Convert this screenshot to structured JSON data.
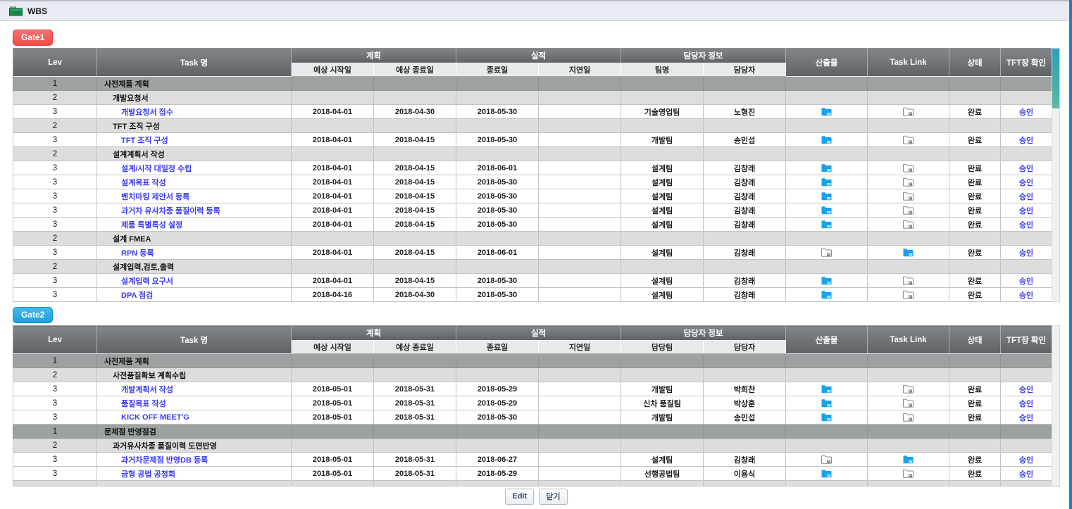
{
  "window": {
    "title": "WBS",
    "icon": "green-folder-icon"
  },
  "colors": {
    "gate1_badge": "#ee4a48",
    "gate2_badge": "#1ba0dc",
    "link_blue": "#3c3cf0",
    "folder_blue": "#18a3ea",
    "folder_gray": "#8b8b8b",
    "scroll_thumb_teal": "#45adab",
    "edge_blue": "#1e7cc9",
    "titlebar_icon_green": "#15894b"
  },
  "buttons": {
    "edit": "Edit",
    "close": "닫기"
  },
  "tables": [
    {
      "gate_label": "Gate1",
      "columns": {
        "lev": "Lev",
        "task": "Task 명",
        "plan_group": "계획",
        "plan_start": "예상 시작일",
        "plan_end": "예상 종료일",
        "actual_group": "실적",
        "actual_end": "종료일",
        "delay": "지연일",
        "owner_group": "담당자 정보",
        "team": "팀명",
        "owner": "담당자",
        "deliverable": "산출물",
        "task_link": "Task Link",
        "status": "상태",
        "tft": "TFT장 확인"
      },
      "rows": [
        {
          "lev": 1,
          "task": "사전제품 계획"
        },
        {
          "lev": 2,
          "task": "개발요청서"
        },
        {
          "lev": 3,
          "task": "개발요청서 접수",
          "plan_start": "2018-04-01",
          "plan_end": "2018-04-30",
          "actual_end": "2018-05-30",
          "delay": "",
          "team": "기술영업팀",
          "owner": "노형진",
          "deliverable": "folder-blue-icon",
          "task_link": "folder-gray-icon",
          "status": "완료",
          "confirm": "승인"
        },
        {
          "lev": 2,
          "task": "TFT 조직 구성"
        },
        {
          "lev": 3,
          "task": "TFT 조직 구성",
          "plan_start": "2018-04-01",
          "plan_end": "2018-04-15",
          "actual_end": "2018-05-30",
          "delay": "",
          "team": "개발팀",
          "owner": "송민섭",
          "deliverable": "folder-blue-icon",
          "task_link": "folder-gray-icon",
          "status": "완료",
          "confirm": "승인"
        },
        {
          "lev": 2,
          "task": "설계계획서 작성"
        },
        {
          "lev": 3,
          "task": "설계/시작 대일정 수립",
          "plan_start": "2018-04-01",
          "plan_end": "2018-04-15",
          "actual_end": "2018-06-01",
          "delay": "",
          "team": "설계팀",
          "owner": "김창래",
          "deliverable": "folder-blue-icon",
          "task_link": "folder-gray-icon",
          "status": "완료",
          "confirm": "승인"
        },
        {
          "lev": 3,
          "task": "설계목표 작성",
          "plan_start": "2018-04-01",
          "plan_end": "2018-04-15",
          "actual_end": "2018-05-30",
          "delay": "",
          "team": "설계팀",
          "owner": "김창래",
          "deliverable": "folder-blue-icon",
          "task_link": "folder-gray-icon",
          "status": "완료",
          "confirm": "승인"
        },
        {
          "lev": 3,
          "task": "벤치마킹 제안서 등록",
          "plan_start": "2018-04-01",
          "plan_end": "2018-04-15",
          "actual_end": "2018-05-30",
          "delay": "",
          "team": "설계팀",
          "owner": "김창래",
          "deliverable": "folder-blue-icon",
          "task_link": "folder-gray-icon",
          "status": "완료",
          "confirm": "승인"
        },
        {
          "lev": 3,
          "task": "과거차 유사차종 품질이력 등록",
          "plan_start": "2018-04-01",
          "plan_end": "2018-04-15",
          "actual_end": "2018-05-30",
          "delay": "",
          "team": "설계팀",
          "owner": "김창래",
          "deliverable": "folder-blue-icon",
          "task_link": "folder-gray-icon",
          "status": "완료",
          "confirm": "승인"
        },
        {
          "lev": 3,
          "task": "제품 특별특성 설정",
          "plan_start": "2018-04-01",
          "plan_end": "2018-04-15",
          "actual_end": "2018-05-30",
          "delay": "",
          "team": "설계팀",
          "owner": "김창래",
          "deliverable": "folder-blue-icon",
          "task_link": "folder-gray-icon",
          "status": "완료",
          "confirm": "승인"
        },
        {
          "lev": 2,
          "task": "설계 FMEA"
        },
        {
          "lev": 3,
          "task": "RPN 등록",
          "plan_start": "2018-04-01",
          "plan_end": "2018-04-15",
          "actual_end": "2018-06-01",
          "delay": "",
          "team": "설계팀",
          "owner": "김창래",
          "deliverable": "folder-gray-icon",
          "task_link": "folder-blue-icon",
          "status": "완료",
          "confirm": "승인"
        },
        {
          "lev": 2,
          "task": "설계입력,검토,출력"
        },
        {
          "lev": 3,
          "task": "설계입력 요구서",
          "plan_start": "2018-04-01",
          "plan_end": "2018-04-15",
          "actual_end": "2018-05-30",
          "delay": "",
          "team": "설계팀",
          "owner": "김창래",
          "deliverable": "folder-blue-icon",
          "task_link": "folder-gray-icon",
          "status": "완료",
          "confirm": "승인"
        },
        {
          "lev": 3,
          "task": "DPA 점검",
          "plan_start": "2018-04-16",
          "plan_end": "2018-04-30",
          "actual_end": "2018-05-30",
          "delay": "",
          "team": "설계팀",
          "owner": "김창래",
          "deliverable": "folder-blue-icon",
          "task_link": "folder-gray-icon",
          "status": "완료",
          "confirm": "승인"
        }
      ]
    },
    {
      "gate_label": "Gate2",
      "partial_bottom_row": true,
      "columns": {
        "lev": "Lev",
        "task": "Task 명",
        "plan_group": "계획",
        "plan_start": "예상 시작일",
        "plan_end": "예상 종료일",
        "actual_group": "실적",
        "actual_end": "종료일",
        "delay": "지연일",
        "owner_group": "담당자 정보",
        "team": "담당팀",
        "owner": "담당자",
        "deliverable": "산출물",
        "task_link": "Task Link",
        "status": "상태",
        "tft": "TFT장 확인"
      },
      "rows": [
        {
          "lev": 1,
          "task": "사전제품 계획"
        },
        {
          "lev": 2,
          "task": "사전품질확보 계획수립"
        },
        {
          "lev": 3,
          "task": "개발계획서 작성",
          "plan_start": "2018-05-01",
          "plan_end": "2018-05-31",
          "actual_end": "2018-05-29",
          "delay": "",
          "team": "개발팀",
          "owner": "박희찬",
          "deliverable": "folder-blue-icon",
          "task_link": "folder-gray-icon",
          "status": "완료",
          "confirm": "승인"
        },
        {
          "lev": 3,
          "task": "품질목표 작성",
          "plan_start": "2018-05-01",
          "plan_end": "2018-05-31",
          "actual_end": "2018-05-29",
          "delay": "",
          "team": "신차 품질팀",
          "owner": "박상훈",
          "deliverable": "folder-blue-icon",
          "task_link": "folder-gray-icon",
          "status": "완료",
          "confirm": "승인"
        },
        {
          "lev": 3,
          "task": "KICK OFF MEET'G",
          "plan_start": "2018-05-01",
          "plan_end": "2018-05-31",
          "actual_end": "2018-05-30",
          "delay": "",
          "team": "개발팀",
          "owner": "송민섭",
          "deliverable": "folder-blue-icon",
          "task_link": "folder-gray-icon",
          "status": "완료",
          "confirm": "승인"
        },
        {
          "lev": 1,
          "task": "문제점 반영점검"
        },
        {
          "lev": 2,
          "task": "과거유사차종 품질이력 도면반영"
        },
        {
          "lev": 3,
          "task": "과거차문제점 반영DB 등록",
          "plan_start": "2018-05-01",
          "plan_end": "2018-05-31",
          "actual_end": "2018-06-27",
          "delay": "",
          "team": "설계팀",
          "owner": "김창래",
          "deliverable": "folder-gray-icon",
          "task_link": "folder-blue-icon",
          "status": "완료",
          "confirm": "승인"
        },
        {
          "lev": 3,
          "task": "금형 공법 공청회",
          "plan_start": "2018-05-01",
          "plan_end": "2018-05-31",
          "actual_end": "2018-05-29",
          "delay": "",
          "team": "선행공법팀",
          "owner": "이용식",
          "deliverable": "folder-blue-icon",
          "task_link": "folder-gray-icon",
          "status": "완료",
          "confirm": "승인"
        }
      ]
    }
  ]
}
